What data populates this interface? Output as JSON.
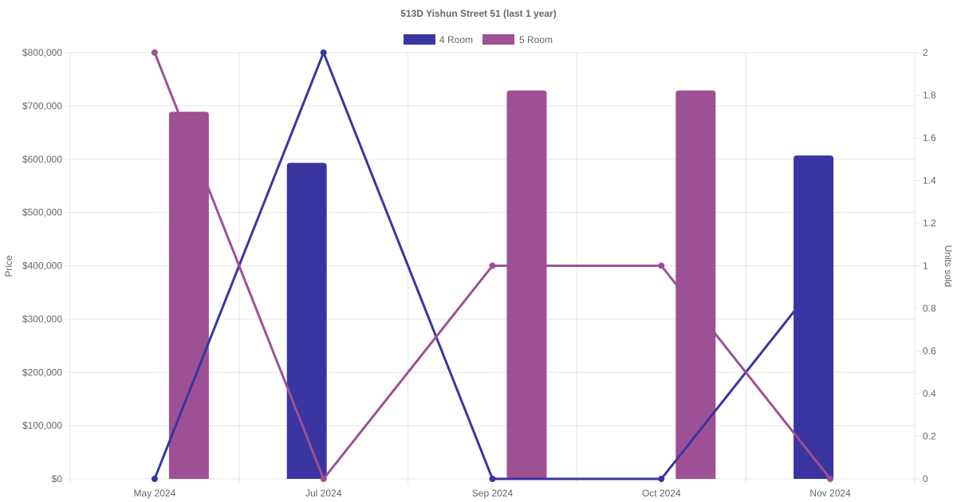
{
  "chart_data": {
    "type": "bar",
    "title": "513D Yishun Street 51 (last 1 year)",
    "categories": [
      "May 2024",
      "Jul 2024",
      "Sep 2024",
      "Oct 2024",
      "Nov 2024"
    ],
    "legend": {
      "placement": "top-center",
      "items": [
        {
          "label": "4 Room",
          "color": "#3a35a0"
        },
        {
          "label": "5 Room",
          "color": "#9e5094"
        }
      ]
    },
    "y_left": {
      "label": "Price",
      "range": [
        0,
        800000
      ],
      "ticks": [
        "$800,000",
        "$700,000",
        "$600,000",
        "$500,000",
        "$400,000",
        "$300,000",
        "$200,000",
        "$100,000",
        "$0"
      ],
      "tick_values": [
        800000,
        700000,
        600000,
        500000,
        400000,
        300000,
        200000,
        100000,
        0
      ]
    },
    "y_right": {
      "label": "Units sold",
      "range": [
        0,
        2
      ],
      "ticks": [
        "2",
        "1.8",
        "1.6",
        "1.4",
        "1.2",
        "1",
        "0.8",
        "0.6",
        "0.4",
        "0.2",
        "0"
      ],
      "tick_values": [
        2,
        1.8,
        1.6,
        1.4,
        1.2,
        1,
        0.8,
        0.6,
        0.4,
        0.2,
        0
      ]
    },
    "grid": true,
    "bar_series": [
      {
        "name": "4 Room",
        "axis": "left",
        "color": "#3a35a0",
        "values": [
          null,
          593000,
          null,
          null,
          607000
        ]
      },
      {
        "name": "5 Room",
        "axis": "left",
        "color": "#9e5094",
        "values": [
          689000,
          null,
          729000,
          729000,
          null
        ]
      }
    ],
    "line_series": [
      {
        "name": "4 Room",
        "axis": "right",
        "color": "#3a35a0",
        "values": [
          0,
          2,
          0,
          0,
          1
        ]
      },
      {
        "name": "5 Room",
        "axis": "right",
        "color": "#9e5094",
        "values": [
          2,
          0,
          1,
          1,
          0
        ]
      }
    ]
  }
}
